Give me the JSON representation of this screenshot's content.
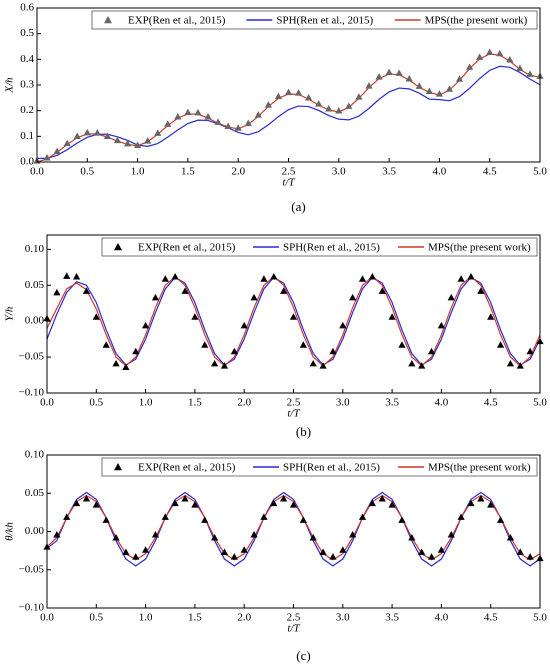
{
  "chart_data": [
    {
      "type": "line",
      "caption": "(a)",
      "x_label": "t/T",
      "y_label": "X/h",
      "x": [
        0,
        0.1,
        0.2,
        0.3,
        0.4,
        0.5,
        0.6,
        0.7,
        0.8,
        0.9,
        1,
        1.1,
        1.2,
        1.3,
        1.4,
        1.5,
        1.6,
        1.7,
        1.8,
        1.9,
        2,
        2.1,
        2.2,
        2.3,
        2.4,
        2.5,
        2.6,
        2.7,
        2.8,
        2.9,
        3,
        3.1,
        3.2,
        3.3,
        3.4,
        3.5,
        3.6,
        3.7,
        3.8,
        3.9,
        4,
        4.1,
        4.2,
        4.3,
        4.4,
        4.5,
        4.6,
        4.7,
        4.8,
        4.9,
        5
      ],
      "xlim": [
        0,
        5
      ],
      "ylim": [
        0,
        0.6
      ],
      "xticks": [
        {
          "value": 0,
          "label": "0.0"
        },
        0.5,
        {
          "value": 1,
          "label": "1.0"
        },
        1.5,
        {
          "value": 2,
          "label": "2.0"
        },
        2.5,
        {
          "value": 3,
          "label": "3.0"
        },
        3.5,
        {
          "value": 4,
          "label": "4.0"
        },
        4.5,
        {
          "value": 5,
          "label": "5.0"
        }
      ],
      "yticks": [
        {
          "value": 0,
          "label": "0.0"
        },
        0.1,
        0.2,
        0.3,
        0.4,
        0.5,
        0.6
      ],
      "series": [
        {
          "name": "EXP(Ren et al., 2015)",
          "color": "#666666",
          "style": "markers",
          "values": [
            0.005,
            0.017,
            0.042,
            0.073,
            0.101,
            0.115,
            0.114,
            0.101,
            0.085,
            0.072,
            0.066,
            0.083,
            0.113,
            0.148,
            0.177,
            0.194,
            0.193,
            0.177,
            0.156,
            0.14,
            0.133,
            0.151,
            0.184,
            0.223,
            0.256,
            0.272,
            0.27,
            0.251,
            0.227,
            0.208,
            0.2,
            0.218,
            0.254,
            0.297,
            0.332,
            0.35,
            0.347,
            0.325,
            0.296,
            0.276,
            0.266,
            0.285,
            0.324,
            0.37,
            0.409,
            0.428,
            0.423,
            0.399,
            0.366,
            0.343,
            0.335
          ]
        },
        {
          "name": "SPH(Ren et al., 2015)",
          "color": "#2a2ad0",
          "style": "line",
          "values": [
            0.014,
            0.014,
            0.026,
            0.048,
            0.074,
            0.096,
            0.108,
            0.108,
            0.098,
            0.084,
            0.066,
            0.061,
            0.072,
            0.097,
            0.125,
            0.15,
            0.163,
            0.162,
            0.149,
            0.133,
            0.115,
            0.106,
            0.118,
            0.145,
            0.177,
            0.204,
            0.218,
            0.216,
            0.201,
            0.181,
            0.167,
            0.164,
            0.179,
            0.209,
            0.244,
            0.273,
            0.288,
            0.285,
            0.268,
            0.245,
            0.243,
            0.239,
            0.255,
            0.287,
            0.325,
            0.357,
            0.373,
            0.369,
            0.349,
            0.323,
            0.301
          ]
        },
        {
          "name": "MPS(the present work)",
          "color": "#d03a2a",
          "style": "line",
          "values": [
            0,
            0.012,
            0.038,
            0.068,
            0.095,
            0.109,
            0.109,
            0.097,
            0.081,
            0.069,
            0.063,
            0.079,
            0.108,
            0.142,
            0.171,
            0.187,
            0.186,
            0.171,
            0.151,
            0.136,
            0.129,
            0.146,
            0.178,
            0.216,
            0.248,
            0.265,
            0.263,
            0.245,
            0.221,
            0.203,
            0.195,
            0.213,
            0.248,
            0.29,
            0.325,
            0.343,
            0.34,
            0.319,
            0.291,
            0.271,
            0.261,
            0.28,
            0.318,
            0.364,
            0.402,
            0.421,
            0.416,
            0.393,
            0.361,
            0.338,
            0.33
          ]
        }
      ]
    },
    {
      "type": "line",
      "caption": "(b)",
      "x_label": "t/T",
      "y_label": "Y/h",
      "x": [
        0,
        0.1,
        0.2,
        0.3,
        0.4,
        0.5,
        0.6,
        0.7,
        0.8,
        0.9,
        1,
        1.1,
        1.2,
        1.3,
        1.4,
        1.5,
        1.6,
        1.7,
        1.8,
        1.9,
        2,
        2.1,
        2.2,
        2.3,
        2.4,
        2.5,
        2.6,
        2.7,
        2.8,
        2.9,
        3,
        3.1,
        3.2,
        3.3,
        3.4,
        3.5,
        3.6,
        3.7,
        3.8,
        3.9,
        4,
        4.1,
        4.2,
        4.3,
        4.4,
        4.5,
        4.6,
        4.7,
        4.8,
        4.9,
        5
      ],
      "xlim": [
        0,
        5
      ],
      "ylim": [
        -0.1,
        0.12
      ],
      "xticks": [
        {
          "value": 0,
          "label": "0.0"
        },
        0.5,
        {
          "value": 1,
          "label": "1.0"
        },
        1.5,
        {
          "value": 2,
          "label": "2.0"
        },
        2.5,
        {
          "value": 3,
          "label": "3.0"
        },
        3.5,
        {
          "value": 4,
          "label": "4.0"
        },
        4.5,
        {
          "value": 5,
          "label": "5.0"
        }
      ],
      "yticks": [
        {
          "value": -0.1,
          "label": "−0.10"
        },
        {
          "value": -0.05,
          "label": "−0.05"
        },
        {
          "value": 0,
          "label": "0.00"
        },
        0.05,
        {
          "value": 0.1,
          "label": "0.10"
        }
      ],
      "series": [
        {
          "name": "EXP(Ren et al., 2015)",
          "color": "#000000",
          "style": "markers",
          "values": [
            0.004,
            0.04,
            0.063,
            0.062,
            0.042,
            0.006,
            -0.033,
            -0.059,
            -0.064,
            -0.042,
            -0.006,
            0.033,
            0.059,
            0.062,
            0.042,
            0.006,
            -0.033,
            -0.059,
            -0.062,
            -0.042,
            -0.006,
            0.033,
            0.059,
            0.062,
            0.042,
            0.006,
            -0.033,
            -0.059,
            -0.062,
            -0.042,
            -0.006,
            0.033,
            0.059,
            0.062,
            0.042,
            0.006,
            -0.033,
            -0.059,
            -0.062,
            -0.042,
            -0.006,
            0.033,
            0.059,
            0.062,
            0.042,
            0.006,
            -0.033,
            -0.059,
            -0.062,
            -0.042,
            -0.028
          ]
        },
        {
          "name": "SPH(Ren et al., 2015)",
          "color": "#2a2ad0",
          "style": "line",
          "values": [
            -0.025,
            0.01,
            0.04,
            0.055,
            0.05,
            0.026,
            -0.012,
            -0.045,
            -0.061,
            -0.053,
            -0.025,
            0.012,
            0.045,
            0.061,
            0.053,
            0.026,
            -0.012,
            -0.045,
            -0.061,
            -0.053,
            -0.025,
            0.012,
            0.045,
            0.061,
            0.053,
            0.026,
            -0.012,
            -0.045,
            -0.061,
            -0.053,
            -0.025,
            0.012,
            0.045,
            0.061,
            0.053,
            0.026,
            -0.012,
            -0.045,
            -0.061,
            -0.053,
            -0.025,
            0.012,
            0.045,
            0.061,
            0.053,
            0.026,
            -0.012,
            -0.045,
            -0.061,
            -0.053,
            -0.025
          ]
        },
        {
          "name": "MPS(the present work)",
          "color": "#d03a2a",
          "style": "line",
          "values": [
            -0.01,
            0.018,
            0.045,
            0.053,
            0.044,
            0.017,
            -0.019,
            -0.05,
            -0.062,
            -0.05,
            -0.019,
            0.019,
            0.05,
            0.062,
            0.05,
            0.019,
            -0.019,
            -0.05,
            -0.062,
            -0.05,
            -0.019,
            0.019,
            0.05,
            0.062,
            0.05,
            0.019,
            -0.019,
            -0.05,
            -0.062,
            -0.05,
            -0.019,
            0.019,
            0.05,
            0.062,
            0.05,
            0.019,
            -0.019,
            -0.05,
            -0.062,
            -0.05,
            -0.019,
            0.019,
            0.05,
            0.062,
            0.05,
            0.019,
            -0.019,
            -0.05,
            -0.062,
            -0.05,
            -0.019
          ]
        }
      ]
    },
    {
      "type": "line",
      "caption": "(c)",
      "x_label": "t/T",
      "y_label": "θ/kh",
      "x": [
        0,
        0.1,
        0.2,
        0.3,
        0.4,
        0.5,
        0.6,
        0.7,
        0.8,
        0.9,
        1,
        1.1,
        1.2,
        1.3,
        1.4,
        1.5,
        1.6,
        1.7,
        1.8,
        1.9,
        2,
        2.1,
        2.2,
        2.3,
        2.4,
        2.5,
        2.6,
        2.7,
        2.8,
        2.9,
        3,
        3.1,
        3.2,
        3.3,
        3.4,
        3.5,
        3.6,
        3.7,
        3.8,
        3.9,
        4,
        4.1,
        4.2,
        4.3,
        4.4,
        4.5,
        4.6,
        4.7,
        4.8,
        4.9,
        5
      ],
      "xlim": [
        0,
        5
      ],
      "ylim": [
        -0.1,
        0.1
      ],
      "xticks": [
        {
          "value": 0,
          "label": "0.0"
        },
        0.5,
        {
          "value": 1,
          "label": "1.0"
        },
        1.5,
        {
          "value": 2,
          "label": "2.0"
        },
        2.5,
        {
          "value": 3,
          "label": "3.0"
        },
        3.5,
        {
          "value": 4,
          "label": "4.0"
        },
        4.5,
        {
          "value": 5,
          "label": "5.0"
        }
      ],
      "yticks": [
        {
          "value": -0.1,
          "label": "−0.10"
        },
        {
          "value": -0.05,
          "label": "−0.05"
        },
        {
          "value": 0,
          "label": "0.00"
        },
        0.05,
        {
          "value": 0.1,
          "label": "0.10"
        }
      ],
      "series": [
        {
          "name": "EXP(Ren et al., 2015)",
          "color": "#000000",
          "style": "markers",
          "values": [
            -0.02,
            -0.004,
            0.019,
            0.037,
            0.043,
            0.035,
            0.015,
            -0.008,
            -0.027,
            -0.033,
            -0.024,
            -0.004,
            0.019,
            0.037,
            0.043,
            0.035,
            0.015,
            -0.008,
            -0.027,
            -0.033,
            -0.024,
            -0.004,
            0.019,
            0.037,
            0.043,
            0.035,
            0.015,
            -0.008,
            -0.027,
            -0.033,
            -0.024,
            -0.004,
            0.019,
            0.037,
            0.043,
            0.035,
            0.015,
            -0.008,
            -0.027,
            -0.033,
            -0.024,
            -0.004,
            0.019,
            0.037,
            0.043,
            0.035,
            0.015,
            -0.008,
            -0.027,
            -0.033,
            -0.035
          ]
        },
        {
          "name": "SPH(Ren et al., 2015)",
          "color": "#2a2ad0",
          "style": "line",
          "values": [
            -0.022,
            -0.012,
            0.018,
            0.042,
            0.051,
            0.042,
            0.018,
            -0.012,
            -0.036,
            -0.045,
            -0.036,
            -0.012,
            0.018,
            0.042,
            0.051,
            0.042,
            0.018,
            -0.012,
            -0.036,
            -0.045,
            -0.036,
            -0.012,
            0.018,
            0.042,
            0.051,
            0.042,
            0.018,
            -0.012,
            -0.036,
            -0.045,
            -0.036,
            -0.012,
            0.018,
            0.042,
            0.051,
            0.042,
            0.018,
            -0.012,
            -0.036,
            -0.045,
            -0.036,
            -0.012,
            0.018,
            0.042,
            0.051,
            0.042,
            0.018,
            -0.012,
            -0.036,
            -0.045,
            -0.036
          ]
        },
        {
          "name": "MPS(the present work)",
          "color": "#d03a2a",
          "style": "line",
          "values": [
            -0.02,
            -0.008,
            0.018,
            0.039,
            0.047,
            0.039,
            0.018,
            -0.008,
            -0.029,
            -0.037,
            -0.029,
            -0.008,
            0.018,
            0.039,
            0.047,
            0.039,
            0.018,
            -0.008,
            -0.029,
            -0.037,
            -0.029,
            -0.008,
            0.018,
            0.039,
            0.047,
            0.039,
            0.018,
            -0.008,
            -0.029,
            -0.037,
            -0.029,
            -0.008,
            0.018,
            0.039,
            0.047,
            0.039,
            0.018,
            -0.008,
            -0.029,
            -0.037,
            -0.029,
            -0.008,
            0.018,
            0.039,
            0.047,
            0.039,
            0.018,
            -0.008,
            -0.029,
            -0.037,
            -0.029
          ]
        }
      ]
    }
  ]
}
